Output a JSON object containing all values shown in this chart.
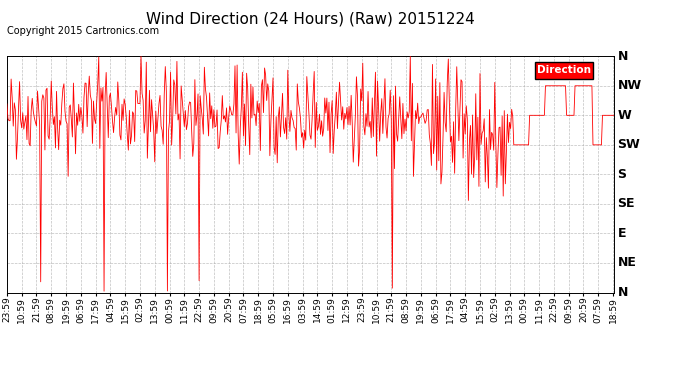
{
  "title": "Wind Direction (24 Hours) (Raw) 20151224",
  "copyright": "Copyright 2015 Cartronics.com",
  "legend_label": "Direction",
  "line_color": "#ff0000",
  "bg_color": "#ffffff",
  "grid_color": "#b0b0b0",
  "ytick_labels": [
    "N",
    "NW",
    "W",
    "SW",
    "S",
    "SE",
    "E",
    "NE",
    "N"
  ],
  "ytick_values": [
    360,
    315,
    270,
    225,
    180,
    135,
    90,
    45,
    0
  ],
  "ylim": [
    0,
    360
  ],
  "seed": 42,
  "num_points": 576,
  "x_tick_every": 14,
  "title_fontsize": 11,
  "tick_fontsize": 6.5,
  "ytick_fontsize": 9,
  "copyright_fontsize": 7
}
